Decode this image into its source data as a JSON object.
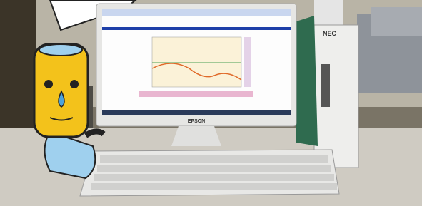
{
  "monitor_brand": "EPSON",
  "pc_brand": "NEC"
}
